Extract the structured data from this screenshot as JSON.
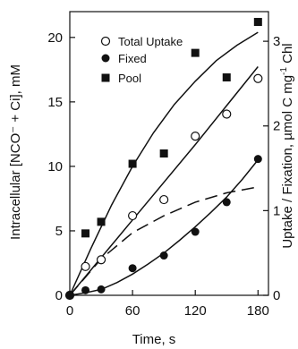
{
  "chart_data": {
    "type": "scatter",
    "title": "",
    "xlabel": "Time,  s",
    "ylabel_left": "Intracellular [NCO⁻ + Ci],  mM",
    "ylabel_right_parts": [
      "Uptake / Fixation, µmol C  mg",
      "-1",
      " Chl"
    ],
    "xlim": [
      0,
      190
    ],
    "ylim_left": [
      0,
      22
    ],
    "ylim_right": [
      0,
      3.35
    ],
    "xticks": [
      0,
      60,
      120,
      180
    ],
    "yticks_left": [
      0,
      5,
      10,
      15,
      20
    ],
    "yticks_right": [
      0,
      1,
      2,
      3
    ],
    "grid": false,
    "legend_position": "top-center",
    "series": [
      {
        "name": "Total Uptake",
        "marker": "open-circle",
        "axis": "right",
        "x": [
          0,
          15,
          30,
          60,
          90,
          120,
          150,
          180
        ],
        "y": [
          0,
          0.34,
          0.42,
          0.94,
          1.13,
          1.88,
          2.14,
          2.56
        ],
        "fit": "line",
        "fit_x": [
          0,
          60,
          120,
          180
        ],
        "fit_y": [
          0,
          0.89,
          1.78,
          2.7
        ]
      },
      {
        "name": "Fixed",
        "marker": "filled-circle",
        "axis": "right",
        "x": [
          0,
          15,
          30,
          60,
          90,
          120,
          150,
          180
        ],
        "y": [
          0,
          0.06,
          0.07,
          0.32,
          0.47,
          0.75,
          1.1,
          1.61
        ],
        "fit": "curve",
        "fit_x": [
          0,
          15,
          30,
          45,
          60,
          75,
          90,
          105,
          120,
          135,
          150,
          165,
          180
        ],
        "fit_y": [
          0,
          0.03,
          0.07,
          0.15,
          0.25,
          0.37,
          0.5,
          0.65,
          0.81,
          0.98,
          1.16,
          1.37,
          1.6
        ]
      },
      {
        "name": "Pool",
        "marker": "filled-square",
        "axis": "left",
        "x": [
          15,
          30,
          60,
          90,
          120,
          150,
          180
        ],
        "y": [
          4.8,
          5.7,
          10.2,
          11.0,
          18.8,
          16.9,
          21.2
        ],
        "fit": "curve",
        "fit_x": [
          0,
          20,
          40,
          60,
          80,
          100,
          120,
          140,
          160,
          180
        ],
        "fit_y": [
          0,
          3.6,
          7.0,
          10.0,
          12.6,
          14.8,
          16.6,
          18.2,
          19.4,
          20.4
        ]
      },
      {
        "name": "",
        "marker": "none",
        "axis": "right",
        "line": "dashed",
        "fit_x": [
          0,
          30,
          60,
          90,
          120,
          150,
          180
        ],
        "fit_y": [
          0,
          0.43,
          0.74,
          0.94,
          1.1,
          1.21,
          1.28
        ]
      }
    ]
  }
}
